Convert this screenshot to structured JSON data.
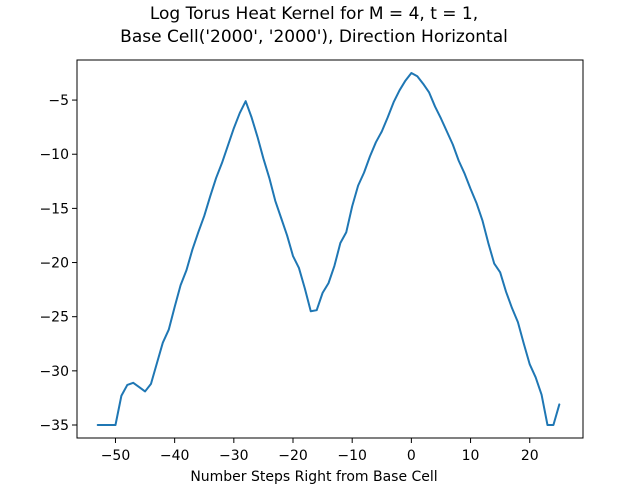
{
  "chart_data": {
    "type": "line",
    "title": "Log Torus Heat Kernel for M = 4, t = 1,",
    "subtitle": "Base Cell('2000', '2000'), Direction Horizontal",
    "xlabel": "Number Steps Right from Base Cell",
    "ylabel": "",
    "xlim": [
      -56.5,
      29
    ],
    "ylim": [
      -36.2,
      -1.3
    ],
    "xticks": [
      -50,
      -40,
      -30,
      -20,
      -10,
      0,
      10,
      20
    ],
    "xtick_labels": [
      "−50",
      "−40",
      "−30",
      "−20",
      "−10",
      "0",
      "10",
      "20"
    ],
    "yticks": [
      -5,
      -10,
      -15,
      -20,
      -25,
      -30,
      -35
    ],
    "ytick_labels": [
      "−5",
      "−10",
      "−15",
      "−20",
      "−25",
      "−30",
      "−35"
    ],
    "grid": false,
    "series": [
      {
        "color": "#1f77b4",
        "x": [
          -53,
          -52,
          -51,
          -50,
          -49,
          -48,
          -47,
          -46,
          -45,
          -44,
          -43,
          -42,
          -41,
          -40,
          -39,
          -38,
          -37,
          -36,
          -35,
          -34,
          -33,
          -32,
          -31,
          -30,
          -29,
          -28,
          -27,
          -26,
          -25,
          -24,
          -23,
          -22,
          -21,
          -20,
          -19,
          -18,
          -17,
          -16,
          -15,
          -14,
          -13,
          -12,
          -11,
          -10,
          -9,
          -8,
          -7,
          -6,
          -5,
          -4,
          -3,
          -2,
          -1,
          0,
          1,
          2,
          3,
          4,
          5,
          6,
          7,
          8,
          9,
          10,
          11,
          12,
          13,
          14,
          15,
          16,
          17,
          18,
          19,
          20,
          21,
          22,
          23,
          24,
          25
        ],
        "y": [
          -35,
          -35,
          -35,
          -35,
          -32.3,
          -31.3,
          -31.1,
          -31.5,
          -31.9,
          -31.2,
          -29.3,
          -27.4,
          -26.2,
          -24.1,
          -22.1,
          -20.7,
          -18.8,
          -17.2,
          -15.7,
          -13.9,
          -12.2,
          -10.8,
          -9.2,
          -7.6,
          -6.2,
          -5.1,
          -6.6,
          -8.4,
          -10.4,
          -12.2,
          -14.3,
          -15.9,
          -17.5,
          -19.4,
          -20.5,
          -22.4,
          -24.5,
          -24.4,
          -22.8,
          -21.9,
          -20.3,
          -18.2,
          -17.2,
          -14.8,
          -12.9,
          -11.7,
          -10.2,
          -8.9,
          -7.9,
          -6.6,
          -5.2,
          -4.1,
          -3.2,
          -2.5,
          -2.8,
          -3.5,
          -4.3,
          -5.6,
          -6.7,
          -7.9,
          -9.1,
          -10.6,
          -11.8,
          -13.2,
          -14.5,
          -16.1,
          -18.2,
          -20.1,
          -20.9,
          -22.7,
          -24.2,
          -25.5,
          -27.5,
          -29.4,
          -30.6,
          -32.2,
          -35,
          -35,
          -33.1
        ]
      }
    ]
  }
}
